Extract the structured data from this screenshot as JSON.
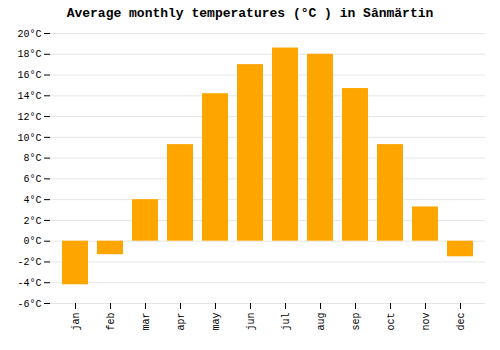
{
  "chart_data": {
    "type": "bar",
    "title": "Average monthly temperatures (°C ) in Sânmärtin",
    "categories": [
      "jan",
      "feb",
      "mar",
      "apr",
      "may",
      "jun",
      "jul",
      "aug",
      "sep",
      "oct",
      "nov",
      "dec"
    ],
    "values": [
      -4.2,
      -1.3,
      4.0,
      9.3,
      14.2,
      17.0,
      18.6,
      18.0,
      14.7,
      9.3,
      3.3,
      -1.5
    ],
    "color": "#FFA500",
    "ylim": [
      -6,
      20
    ],
    "yticks": [
      {
        "value": -6,
        "label": "-6°C"
      },
      {
        "value": -4,
        "label": "-4°C"
      },
      {
        "value": -2,
        "label": "-2°C"
      },
      {
        "value": 0,
        "label": "0°C"
      },
      {
        "value": 2,
        "label": "2°C"
      },
      {
        "value": 4,
        "label": "4°C"
      },
      {
        "value": 6,
        "label": "6°C"
      },
      {
        "value": 8,
        "label": "8°C"
      },
      {
        "value": 10,
        "label": "10°C"
      },
      {
        "value": 12,
        "label": "12°C"
      },
      {
        "value": 14,
        "label": "14°C"
      },
      {
        "value": 16,
        "label": "16°C"
      },
      {
        "value": 18,
        "label": "18°C"
      },
      {
        "value": 20,
        "label": "20°C"
      }
    ],
    "grid": true
  }
}
